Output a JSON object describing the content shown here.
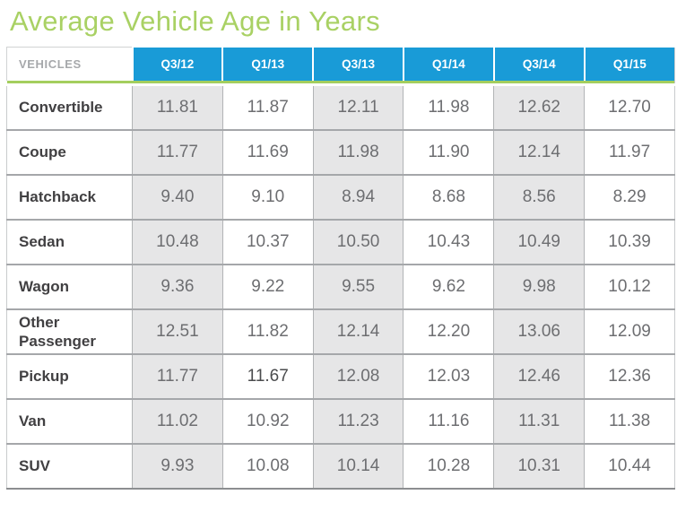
{
  "title": "Average Vehicle Age in Years",
  "table": {
    "corner_header": "VEHICLES",
    "column_headers": [
      "Q3/12",
      "Q1/13",
      "Q3/13",
      "Q1/14",
      "Q3/14",
      "Q1/15"
    ],
    "shaded_column_indexes": [
      0,
      2,
      4
    ],
    "rows": [
      {
        "label": "Convertible",
        "values": [
          "11.81",
          "11.87",
          "12.11",
          "11.98",
          "12.62",
          "12.70"
        ]
      },
      {
        "label": "Coupe",
        "values": [
          "11.77",
          "11.69",
          "11.98",
          "11.90",
          "12.14",
          "11.97"
        ]
      },
      {
        "label": "Hatchback",
        "values": [
          "9.40",
          "9.10",
          "8.94",
          "8.68",
          "8.56",
          "8.29"
        ]
      },
      {
        "label": "Sedan",
        "values": [
          "10.48",
          "10.37",
          "10.50",
          "10.43",
          "10.49",
          "10.39"
        ]
      },
      {
        "label": "Wagon",
        "values": [
          "9.36",
          "9.22",
          "9.55",
          "9.62",
          "9.98",
          "10.12"
        ]
      },
      {
        "label": "Other Passenger",
        "values": [
          "12.51",
          "11.82",
          "12.14",
          "12.20",
          "13.06",
          "12.09"
        ]
      },
      {
        "label": "Pickup",
        "values": [
          "11.77",
          "11.67",
          "12.08",
          "12.03",
          "12.46",
          "12.36"
        ],
        "bold_value_index": 1
      },
      {
        "label": "Van",
        "values": [
          "11.02",
          "10.92",
          "11.23",
          "11.16",
          "11.31",
          "11.38"
        ]
      },
      {
        "label": "SUV",
        "values": [
          "9.93",
          "10.08",
          "10.14",
          "10.28",
          "10.31",
          "10.44"
        ]
      }
    ]
  },
  "colors": {
    "title_green": "#a9d164",
    "divider_green": "#a4ce5e",
    "header_blue": "#199bd7",
    "shaded_column": "#e6e6e7",
    "value_text": "#6d6e71",
    "label_text": "#414042"
  },
  "chart_data": {
    "type": "table",
    "title": "Average Vehicle Age in Years",
    "categories": [
      "Q3/12",
      "Q1/13",
      "Q3/13",
      "Q1/14",
      "Q3/14",
      "Q1/15"
    ],
    "series": [
      {
        "name": "Convertible",
        "values": [
          11.81,
          11.87,
          12.11,
          11.98,
          12.62,
          12.7
        ]
      },
      {
        "name": "Coupe",
        "values": [
          11.77,
          11.69,
          11.98,
          11.9,
          12.14,
          11.97
        ]
      },
      {
        "name": "Hatchback",
        "values": [
          9.4,
          9.1,
          8.94,
          8.68,
          8.56,
          8.29
        ]
      },
      {
        "name": "Sedan",
        "values": [
          10.48,
          10.37,
          10.5,
          10.43,
          10.49,
          10.39
        ]
      },
      {
        "name": "Wagon",
        "values": [
          9.36,
          9.22,
          9.55,
          9.62,
          9.98,
          10.12
        ]
      },
      {
        "name": "Other Passenger",
        "values": [
          12.51,
          11.82,
          12.14,
          12.2,
          13.06,
          12.09
        ]
      },
      {
        "name": "Pickup",
        "values": [
          11.77,
          11.67,
          12.08,
          12.03,
          12.46,
          12.36
        ]
      },
      {
        "name": "Van",
        "values": [
          11.02,
          10.92,
          11.23,
          11.16,
          11.31,
          11.38
        ]
      },
      {
        "name": "SUV",
        "values": [
          9.93,
          10.08,
          10.14,
          10.28,
          10.31,
          10.44
        ]
      }
    ]
  }
}
